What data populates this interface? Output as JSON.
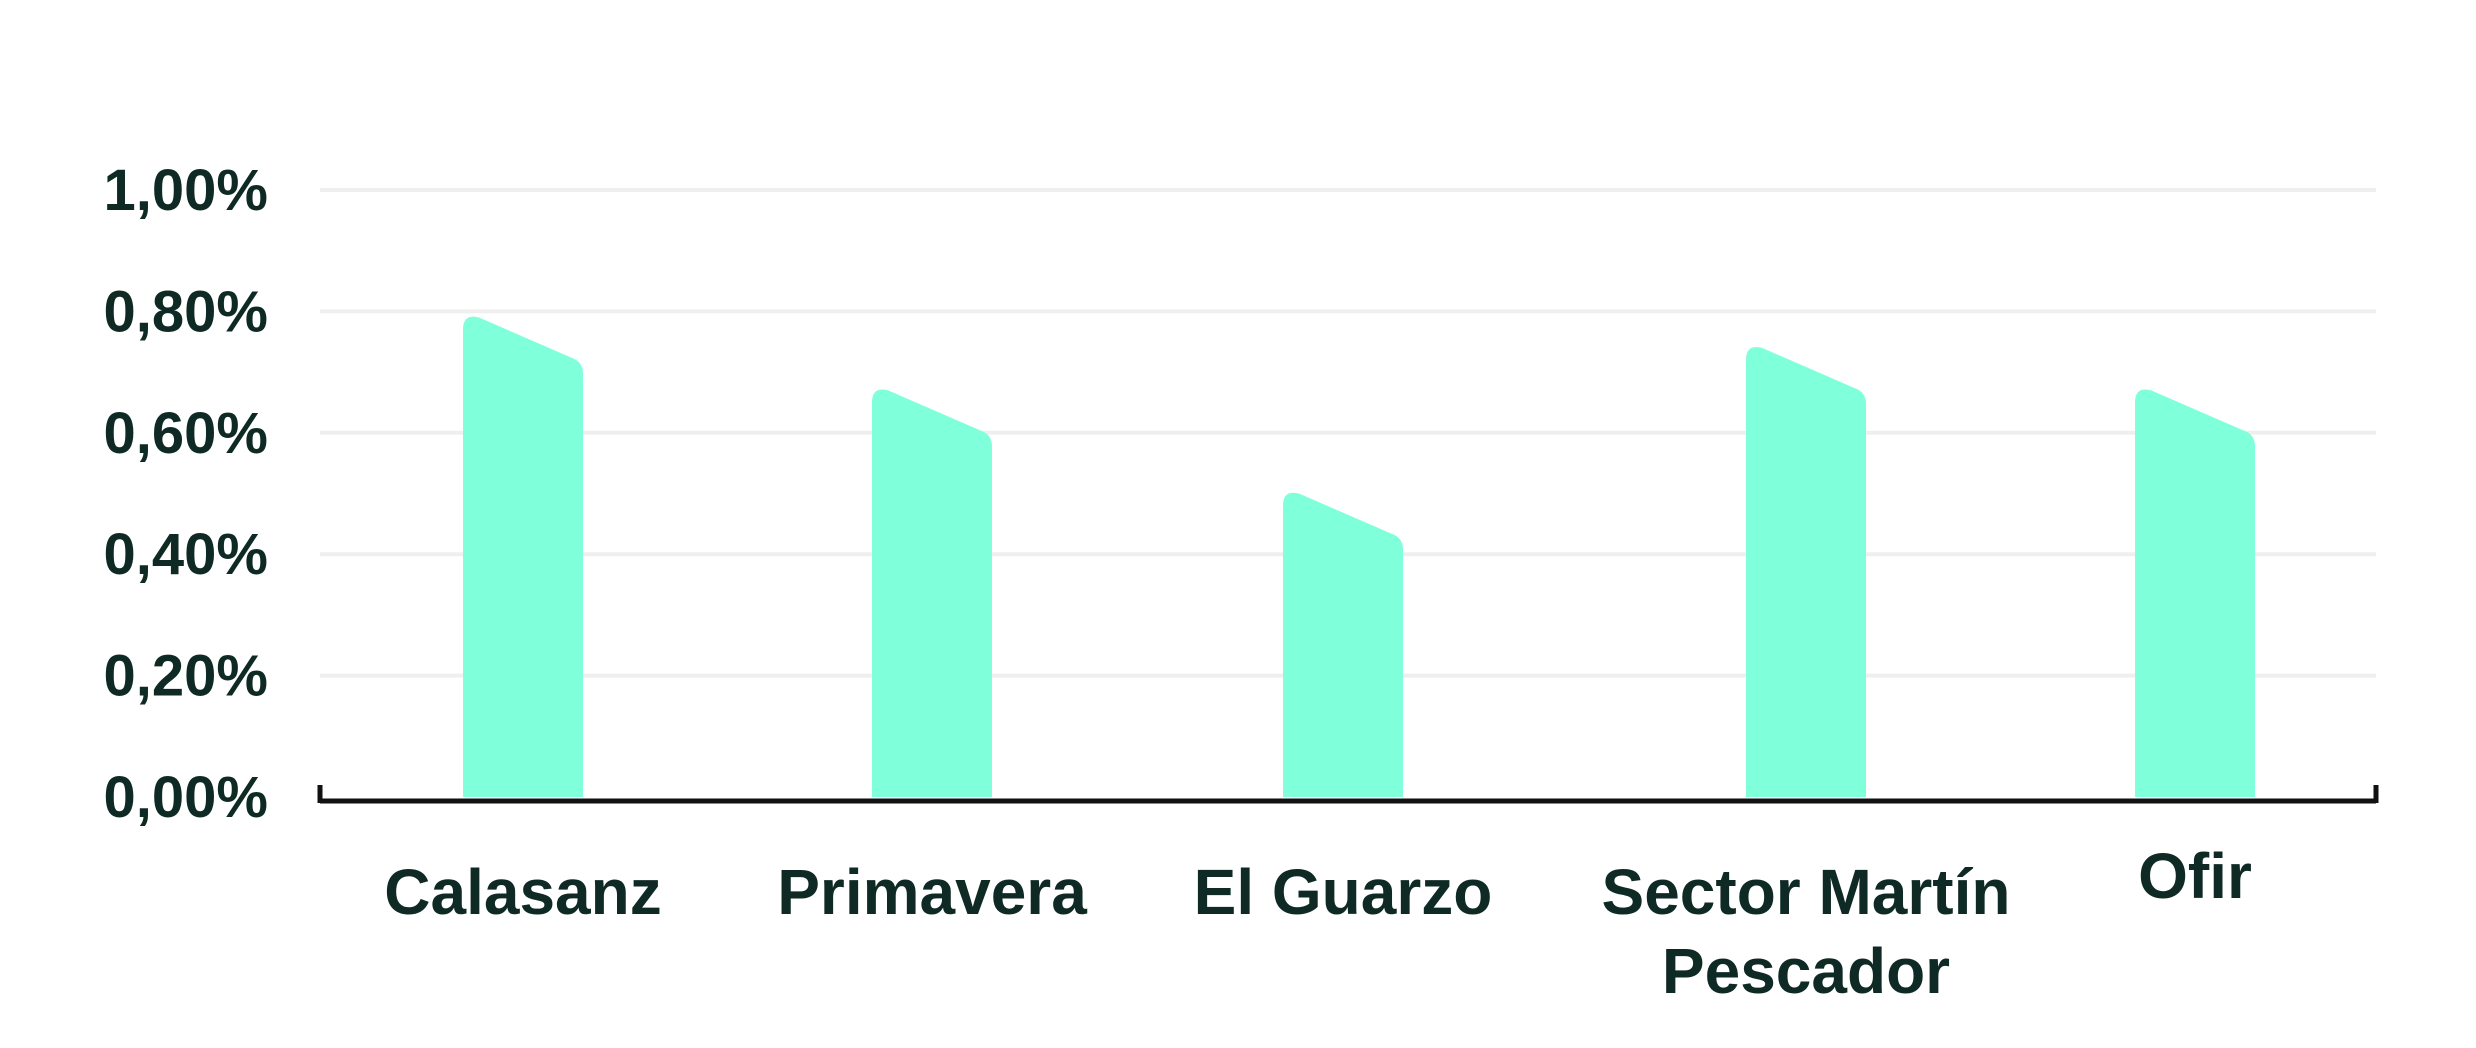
{
  "chart_data": {
    "type": "bar",
    "categories": [
      "Calasanz",
      "Primavera",
      "El Guarzo",
      "Sector Martín Pescador",
      "Ofir"
    ],
    "category_lines": [
      [
        "Calasanz"
      ],
      [
        "Primavera"
      ],
      [
        "El Guarzo"
      ],
      [
        "Sector Martín",
        "Pescador"
      ],
      [
        "Ofir"
      ]
    ],
    "values": [
      0.79,
      0.67,
      0.5,
      0.74,
      0.67
    ],
    "value_format": "percent",
    "ylim": [
      0,
      1.0
    ],
    "y_ticks": [
      0.0,
      0.2,
      0.4,
      0.6,
      0.8,
      1.0
    ],
    "y_tick_labels": [
      "0,00%",
      "0,20%",
      "0,40%",
      "0,60%",
      "0,80%",
      "1,00%"
    ],
    "title": "",
    "xlabel": "",
    "ylabel": "",
    "grid": true,
    "legend": "none",
    "colors": {
      "bar": "#80ffdb",
      "text": "#0f2a24",
      "axis": "#111111",
      "grid": "#efefef"
    }
  }
}
